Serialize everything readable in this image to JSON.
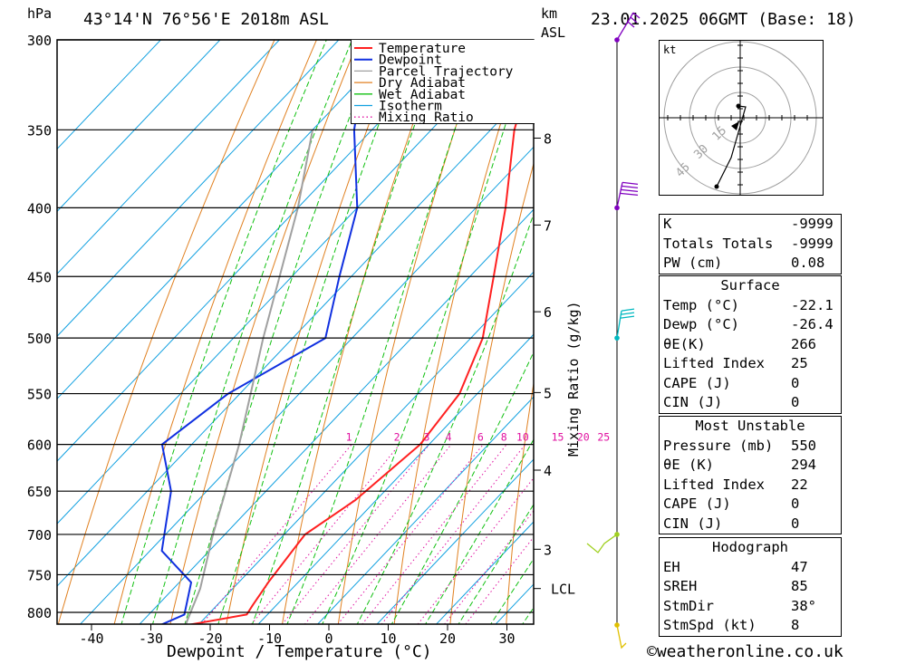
{
  "header": {
    "hpa_label": "hPa",
    "location": "43°14'N 76°56'E 2018m ASL",
    "km_label": "km",
    "asl_label": "ASL",
    "datetime": "23.01.2025 06GMT (Base: 18)",
    "kt_label": "kt"
  },
  "footer": {
    "xlabel": "Dewpoint / Temperature (°C)",
    "copyright": "©weatheronline.co.uk",
    "mixing_ratio_label": "Mixing Ratio (g/kg)"
  },
  "legend": [
    {
      "label": "Temperature",
      "color": "#ff2020"
    },
    {
      "label": "Dewpoint",
      "color": "#1030e0"
    },
    {
      "label": "Parcel Trajectory",
      "color": "#a0a0a0"
    },
    {
      "label": "Dry Adiabat",
      "color": "#e08020"
    },
    {
      "label": "Wet Adiabat",
      "color": "#10c010"
    },
    {
      "label": "Isotherm",
      "color": "#10a0e0"
    },
    {
      "label": "Mixing Ratio",
      "color": "#e010a0"
    }
  ],
  "chart_data": {
    "type": "line",
    "subtype": "skew-T log-P diagram",
    "xlabel": "Dewpoint / Temperature (°C)",
    "ylabel": "hPa",
    "pressure_levels": [
      300,
      350,
      400,
      450,
      500,
      550,
      600,
      650,
      700,
      750,
      800
    ],
    "x_ticks": [
      -40,
      -30,
      -20,
      -10,
      0,
      10,
      20,
      30
    ],
    "x_range": [
      -45,
      35
    ],
    "p_range": [
      300,
      820
    ],
    "km_ticks": [
      {
        "label": "8",
        "p": 355
      },
      {
        "label": "7",
        "p": 412
      },
      {
        "label": "6",
        "p": 478
      },
      {
        "label": "5",
        "p": 549
      },
      {
        "label": "4",
        "p": 627
      },
      {
        "label": "3",
        "p": 718
      },
      {
        "label": "LCL",
        "p": 768
      }
    ],
    "mixing_ratio_labels": [
      "1",
      "2",
      "3",
      "4",
      "6",
      "8",
      "10",
      "15",
      "20",
      "25"
    ],
    "series": [
      {
        "name": "Temperature",
        "color": "#ff2020",
        "points": [
          [
            818,
            -22
          ],
          [
            803,
            -13.5
          ],
          [
            790,
            -14
          ],
          [
            760,
            -15
          ],
          [
            720,
            -16
          ],
          [
            700,
            -16.5
          ],
          [
            660,
            -13.5
          ],
          [
            600,
            -11.5
          ],
          [
            550,
            -13
          ],
          [
            500,
            -18
          ],
          [
            450,
            -26
          ],
          [
            400,
            -35
          ],
          [
            350,
            -46
          ],
          [
            300,
            -56
          ]
        ]
      },
      {
        "name": "Dewpoint",
        "color": "#1030e0",
        "points": [
          [
            818,
            -26.4
          ],
          [
            803,
            -24
          ],
          [
            760,
            -28
          ],
          [
            720,
            -38
          ],
          [
            650,
            -46
          ],
          [
            600,
            -55
          ],
          [
            550,
            -52
          ],
          [
            500,
            -44.5
          ],
          [
            450,
            -52
          ],
          [
            400,
            -60
          ],
          [
            350,
            -73
          ],
          [
            300,
            -85
          ]
        ]
      },
      {
        "name": "Parcel Trajectory",
        "color": "#a0a0a0",
        "points": [
          [
            818,
            -22.1
          ],
          [
            768,
            -25.5
          ],
          [
            700,
            -32
          ],
          [
            600,
            -42
          ],
          [
            500,
            -55
          ],
          [
            400,
            -70
          ],
          [
            350,
            -80
          ]
        ]
      }
    ],
    "background_lines": {
      "isotherms_c": [
        -120,
        -110,
        -100,
        -90,
        -80,
        -70,
        -60,
        -50,
        -40,
        -30,
        -20,
        -10,
        0,
        10,
        20,
        30
      ],
      "dry_adiabats_c_at_1000": [
        -30,
        -20,
        -10,
        0,
        10,
        20,
        30,
        40,
        50,
        60,
        70,
        80,
        90,
        100,
        110,
        120,
        130,
        140,
        150
      ],
      "wet_adiabats_c_at_1000": [
        -20,
        -15,
        -10,
        -5,
        0,
        5,
        10,
        15,
        20,
        25,
        30,
        35,
        40
      ],
      "mixing_ratios_gkg": [
        1,
        2,
        3,
        4,
        6,
        8,
        10,
        15,
        20,
        25
      ]
    },
    "wind_barbs": [
      {
        "p": 300,
        "color": "#8000c0"
      },
      {
        "p": 400,
        "color": "#8000c0"
      },
      {
        "p": 500,
        "color": "#00b8c0"
      },
      {
        "p": 700,
        "color": "#a0d020"
      },
      {
        "p": 818,
        "color": "#e0c000"
      }
    ],
    "hodograph": {
      "rings_kt": [
        15,
        30,
        45
      ],
      "ring_labels": [
        "15",
        "30",
        "45"
      ]
    }
  },
  "indices": {
    "top": [
      {
        "label": "K",
        "value": "-9999"
      },
      {
        "label": "Totals Totals",
        "value": "-9999"
      },
      {
        "label": "PW (cm)",
        "value": "0.08"
      }
    ],
    "surface": {
      "title": "Surface",
      "rows": [
        {
          "label": "Temp (°C)",
          "value": "-22.1"
        },
        {
          "label": "Dewp (°C)",
          "value": "-26.4"
        },
        {
          "label": "θE(K)",
          "value": "266"
        },
        {
          "label": "Lifted Index",
          "value": "25"
        },
        {
          "label": "CAPE (J)",
          "value": "0"
        },
        {
          "label": "CIN (J)",
          "value": "0"
        }
      ]
    },
    "most_unstable": {
      "title": "Most Unstable",
      "rows": [
        {
          "label": "Pressure (mb)",
          "value": "550"
        },
        {
          "label": "θE (K)",
          "value": "294"
        },
        {
          "label": "Lifted Index",
          "value": "22"
        },
        {
          "label": "CAPE (J)",
          "value": "0"
        },
        {
          "label": "CIN (J)",
          "value": "0"
        }
      ]
    },
    "hodograph": {
      "title": "Hodograph",
      "rows": [
        {
          "label": "EH",
          "value": "47"
        },
        {
          "label": "SREH",
          "value": "85"
        },
        {
          "label": "StmDir",
          "value": "38°"
        },
        {
          "label": "StmSpd (kt)",
          "value": "8"
        }
      ]
    }
  }
}
